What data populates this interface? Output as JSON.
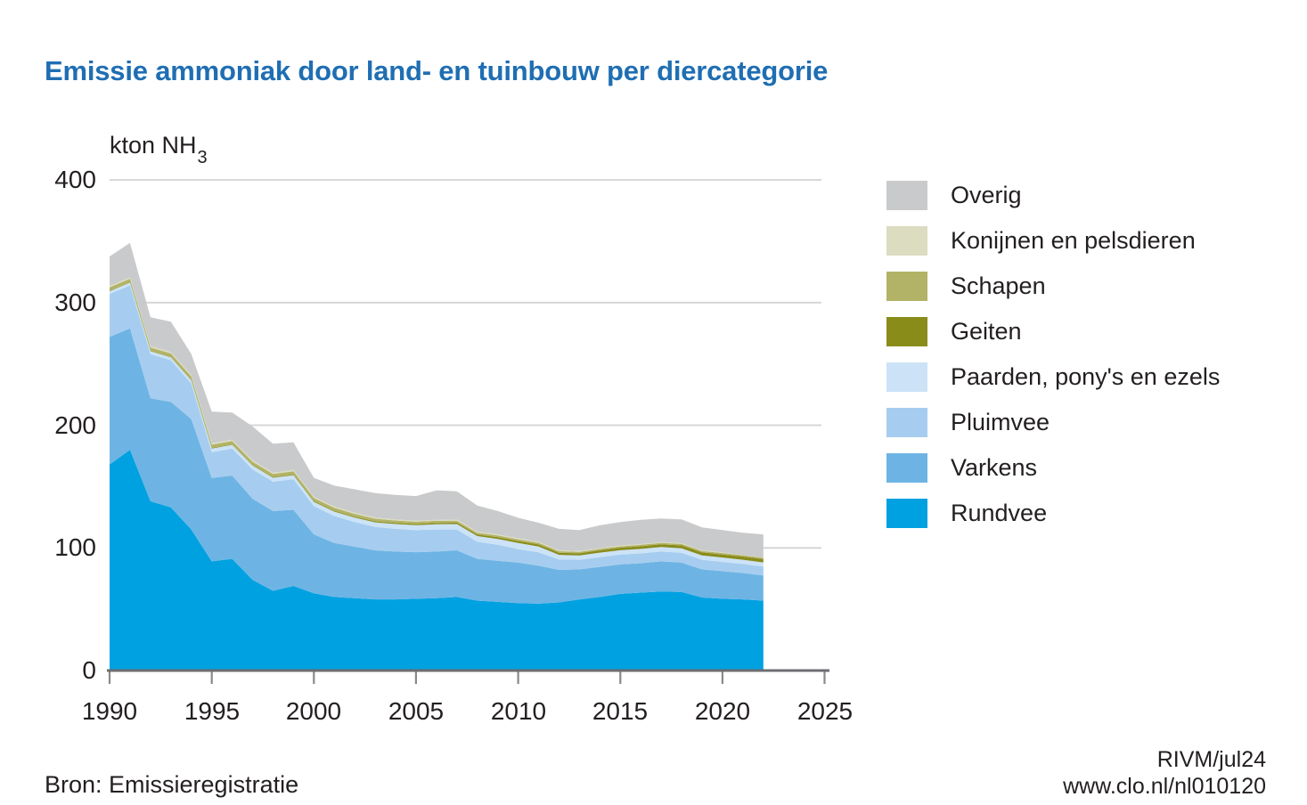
{
  "title": "Emissie ammoniak door land- en tuinbouw per diercategorie",
  "source": "Bron: Emissieregistratie",
  "credits": {
    "line1": "RIVM/jul24",
    "line2": "www.clo.nl/nl010120"
  },
  "colors": {
    "title": "#1f6eb3",
    "axis": "#6d6e71",
    "tick": "#87898c",
    "gridline": "#d2d3d5",
    "text": "#231f20"
  },
  "chart_data": {
    "type": "area",
    "stacked": true,
    "title": "Emissie ammoniak door land- en tuinbouw per diercategorie",
    "unit_main": "kton NH",
    "unit_sub": "3",
    "ylabel": "kton NH3",
    "xlabel": "",
    "ylim": [
      0,
      400
    ],
    "yticks": [
      0,
      100,
      200,
      300,
      400
    ],
    "xticks": [
      1990,
      1995,
      2000,
      2005,
      2010,
      2015,
      2020,
      2025
    ],
    "grid": "horizontal",
    "legend_position": "right",
    "legend_order_top_to_bottom": [
      "Overig",
      "Konijnen en pelsdieren",
      "Schapen",
      "Geiten",
      "Paarden, pony's en ezels",
      "Pluimvee",
      "Varkens",
      "Rundvee"
    ],
    "x": [
      1990,
      1991,
      1992,
      1993,
      1994,
      1995,
      1996,
      1997,
      1998,
      1999,
      2000,
      2001,
      2002,
      2003,
      2004,
      2005,
      2006,
      2007,
      2008,
      2009,
      2010,
      2011,
      2012,
      2013,
      2014,
      2015,
      2016,
      2017,
      2018,
      2019,
      2020,
      2021,
      2022
    ],
    "series": [
      {
        "name": "Rundvee",
        "color": "#00a1e1",
        "values": [
          168,
          180,
          138,
          133,
          115,
          89,
          91,
          74,
          65,
          69,
          63,
          60,
          59,
          58,
          58,
          58.5,
          59,
          60,
          57,
          56,
          55,
          54.5,
          55.5,
          58,
          60,
          62.5,
          63.5,
          64.5,
          64,
          59.5,
          58.5,
          58,
          57
        ]
      },
      {
        "name": "Varkens",
        "color": "#6db4e4",
        "values": [
          104,
          99,
          84,
          86,
          90,
          68,
          68,
          66,
          65,
          62,
          48,
          44,
          42,
          40,
          39,
          38,
          38,
          38,
          34,
          33.5,
          33,
          31,
          26.5,
          24.5,
          24.5,
          24,
          24,
          24.5,
          24,
          23,
          22.5,
          21.5,
          20.5
        ]
      },
      {
        "name": "Pluimvee",
        "color": "#a6cdef",
        "values": [
          35,
          35,
          36,
          34,
          29,
          21,
          22,
          24,
          24,
          25,
          23,
          22,
          20,
          19,
          18.5,
          18,
          18,
          17,
          14,
          13,
          11,
          10.8,
          8.5,
          7.8,
          8,
          8,
          8,
          8,
          8,
          7.8,
          7.6,
          7.4,
          7.2
        ]
      },
      {
        "name": "Paarden, pony's en ezels",
        "color": "#cce3f7",
        "values": [
          2.2,
          2.2,
          2.3,
          2.4,
          2.6,
          3,
          3,
          3.2,
          3.2,
          3.3,
          3.5,
          3.6,
          3.7,
          3.8,
          3.9,
          4,
          4.2,
          4.4,
          4.6,
          4.8,
          5,
          4.8,
          3.8,
          3.5,
          3.6,
          3.6,
          3.7,
          3.7,
          3.7,
          3.6,
          3.5,
          3.4,
          3.4
        ]
      },
      {
        "name": "Geiten",
        "color": "#8a8c1a",
        "values": [
          0.4,
          0.4,
          0.4,
          0.4,
          0.5,
          0.5,
          0.5,
          0.5,
          0.5,
          0.6,
          0.6,
          0.7,
          0.7,
          0.8,
          0.9,
          1,
          1.1,
          1.2,
          1.3,
          1.4,
          1.6,
          1.7,
          1.7,
          1.8,
          1.9,
          2,
          2.1,
          2.2,
          2.3,
          2.4,
          2.5,
          2.6,
          2.7
        ]
      },
      {
        "name": "Schapen",
        "color": "#b2b366",
        "values": [
          2.8,
          2.8,
          2.7,
          2.7,
          2.6,
          2.6,
          2.6,
          2.5,
          2.5,
          2.5,
          2.5,
          2.4,
          2.3,
          2.2,
          2,
          1.8,
          1.7,
          1.6,
          1.5,
          1.5,
          1.4,
          1.4,
          1.3,
          1.2,
          1.2,
          1.2,
          1.2,
          1.2,
          1.2,
          1.2,
          1.2,
          1.1,
          1.1
        ]
      },
      {
        "name": "Konijnen en pelsdieren",
        "color": "#dbdcc0",
        "values": [
          1.2,
          1.2,
          1.2,
          1.2,
          1.2,
          1.2,
          1.2,
          1.2,
          1.2,
          1.1,
          1,
          1,
          1,
          0.9,
          0.9,
          0.9,
          0.9,
          0.9,
          0.8,
          0.8,
          0.8,
          0.8,
          0.7,
          0.7,
          0.7,
          0.7,
          0.6,
          0.6,
          0.6,
          0.5,
          0.5,
          0.2,
          0.2
        ]
      },
      {
        "name": "Overig",
        "color": "#c9cacb",
        "values": [
          24,
          28,
          23.4,
          24.7,
          17.2,
          25.7,
          22,
          27.6,
          23.6,
          22.5,
          15.5,
          17,
          19,
          20,
          20,
          20,
          24,
          23,
          21.3,
          19,
          16.7,
          15.5,
          17.5,
          17,
          18.5,
          19,
          19.7,
          19.3,
          19.4,
          18.7,
          18.2,
          18.1,
          18.9
        ]
      }
    ]
  }
}
